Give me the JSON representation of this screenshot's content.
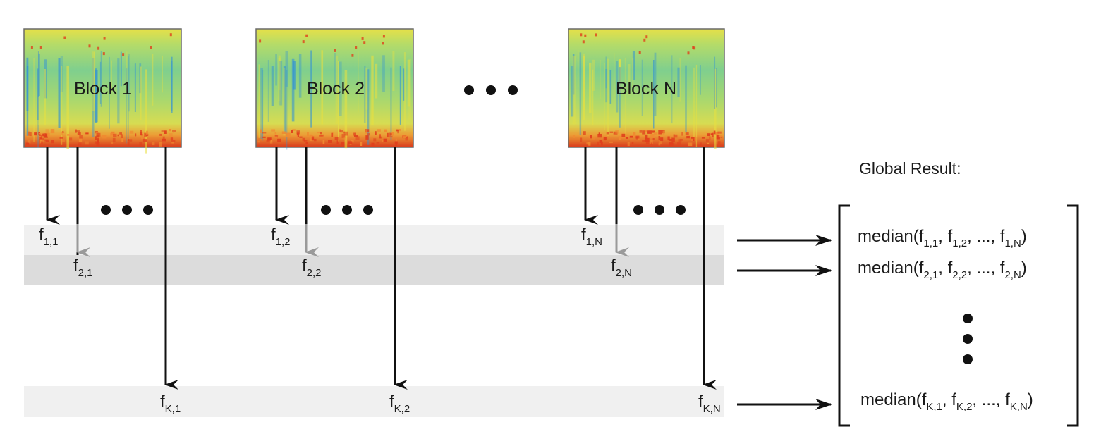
{
  "blocks": [
    {
      "label": "Block 1"
    },
    {
      "label": "Block 2"
    },
    {
      "label": "Block N"
    }
  ],
  "features": {
    "block1": {
      "f1": {
        "sym": "f",
        "sub": "1,1"
      },
      "f2": {
        "sym": "f",
        "sub": "2,1"
      },
      "fk": {
        "sym": "f",
        "sub": "K,1"
      }
    },
    "block2": {
      "f1": {
        "sym": "f",
        "sub": "1,2"
      },
      "f2": {
        "sym": "f",
        "sub": "2,2"
      },
      "fk": {
        "sym": "f",
        "sub": "K,2"
      }
    },
    "blockN": {
      "f1": {
        "sym": "f",
        "sub": "1,N"
      },
      "f2": {
        "sym": "f",
        "sub": "2,N"
      },
      "fk": {
        "sym": "f",
        "sub": "K,N"
      }
    }
  },
  "result": {
    "title": "Global Result:",
    "rows": [
      {
        "parts": [
          "median(f",
          "1,1",
          ", f",
          "1,2",
          ", ..., f",
          "1,N",
          ")"
        ]
      },
      {
        "parts": [
          "median(f",
          "2,1",
          ", f",
          "2,2",
          ", ..., f",
          "2,N",
          ")"
        ]
      },
      {
        "parts": [
          "median(f",
          "K,1",
          ", f",
          "K,2",
          ", ..., f",
          "K,N",
          ")"
        ]
      }
    ]
  },
  "colors": {
    "band_light": "#f0f0f0",
    "band_dark": "#dcdcdc",
    "arrow_black": "#111111",
    "arrow_gray": "#9a9a9a",
    "spec_low": "#2f8fd8",
    "spec_mid": "#9fdc6a",
    "spec_high": "#e8e040",
    "spec_hot": "#e0401c"
  }
}
